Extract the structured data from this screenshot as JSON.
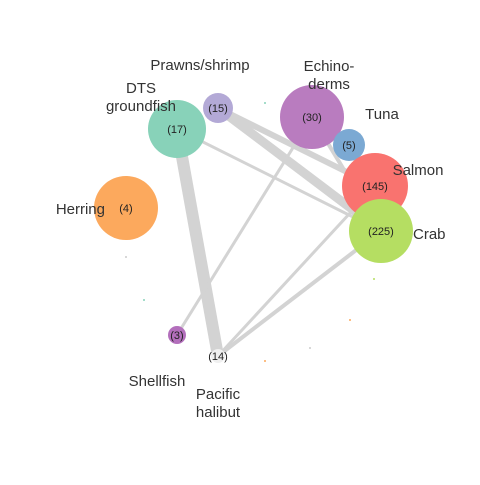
{
  "diagram": {
    "type": "network",
    "edge_color": "#d3d3d3",
    "nodes": [
      {
        "id": "prawns",
        "label": [
          "Prawns/shrimp"
        ],
        "count": "(15)",
        "color": "#b3a9d6"
      },
      {
        "id": "echinoderms",
        "label": [
          "Echino-",
          "derms"
        ],
        "count": "(30)",
        "color": "#b97cbf"
      },
      {
        "id": "tuna",
        "label": [
          "Tuna"
        ],
        "count": "(5)",
        "color": "#7ba9d3"
      },
      {
        "id": "dts",
        "label": [
          "DTS",
          "groundfish"
        ],
        "count": "(17)",
        "color": "#88d2b9"
      },
      {
        "id": "salmon",
        "label": [
          "Salmon"
        ],
        "count": "(145)",
        "color": "#f9736f"
      },
      {
        "id": "herring",
        "label": [
          "Herring"
        ],
        "count": "(4)",
        "color": "#fca95d"
      },
      {
        "id": "crab",
        "label": [
          "Crab"
        ],
        "count": "(225)",
        "color": "#b5de62"
      },
      {
        "id": "shellfish",
        "label": [
          "Shellfish"
        ],
        "count": "(3)",
        "color": "#b36fbc"
      },
      {
        "id": "halibut",
        "label": [
          "Pacific",
          "halibut"
        ],
        "count": "(14)",
        "color": "#f0f0f0"
      }
    ],
    "edges": [
      {
        "from": "prawns",
        "to": "crab",
        "weight": 9
      },
      {
        "from": "prawns",
        "to": "salmon",
        "weight": 6
      },
      {
        "from": "dts",
        "to": "halibut",
        "weight": 12
      },
      {
        "from": "dts",
        "to": "crab",
        "weight": 3
      },
      {
        "from": "echinoderms",
        "to": "shellfish",
        "weight": 3
      },
      {
        "from": "echinoderms",
        "to": "crab",
        "weight": 4
      },
      {
        "from": "tuna",
        "to": "crab",
        "weight": 3
      },
      {
        "from": "salmon",
        "to": "halibut",
        "weight": 3
      },
      {
        "from": "crab",
        "to": "halibut",
        "weight": 4
      }
    ]
  }
}
